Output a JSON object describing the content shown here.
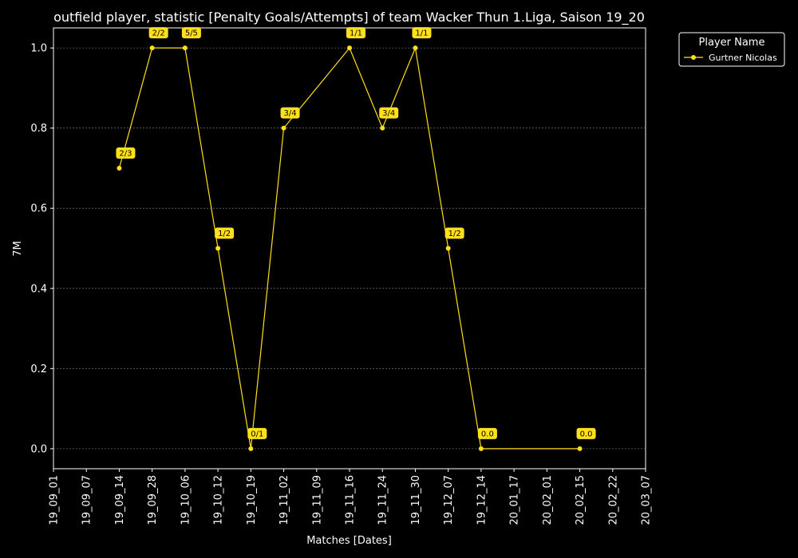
{
  "chart_data": {
    "type": "line",
    "title": "outfield player, statistic [Penalty Goals/Attempts] of team Wacker Thun 1.Liga, Saison 19_20",
    "xlabel": "Matches [Dates]",
    "ylabel": "7M",
    "ylim": [
      -0.05,
      1.05
    ],
    "yticks": [
      "0.0",
      "0.2",
      "0.4",
      "0.6",
      "0.8",
      "1.0"
    ],
    "x_ticks": [
      "19_09_01",
      "19_09_07",
      "19_09_14",
      "19_09_28",
      "19_10_06",
      "19_10_12",
      "19_10_19",
      "19_11_02",
      "19_11_09",
      "19_11_16",
      "19_11_24",
      "19_11_30",
      "19_12_07",
      "19_12_14",
      "20_01_17",
      "20_02_01",
      "20_02_15",
      "20_02_22",
      "20_03_07"
    ],
    "grid": "horizontal dashed",
    "legend": {
      "title": "Player Name",
      "position": "outside right, top"
    },
    "series": [
      {
        "name": "Gurtner Nicolas",
        "color": "#ffe01a",
        "points": [
          {
            "x": "19_09_14",
            "y": 0.7,
            "label": "2/3"
          },
          {
            "x": "19_09_28",
            "y": 1.0,
            "label": "2/2"
          },
          {
            "x": "19_10_06",
            "y": 1.0,
            "label": "5/5"
          },
          {
            "x": "19_10_12",
            "y": 0.5,
            "label": "1/2"
          },
          {
            "x": "19_10_19",
            "y": 0.0,
            "label": "0/1"
          },
          {
            "x": "19_11_02",
            "y": 0.8,
            "label": "3/4"
          },
          {
            "x": "19_11_16",
            "y": 1.0,
            "label": "1/1"
          },
          {
            "x": "19_11_24",
            "y": 0.8,
            "label": "3/4"
          },
          {
            "x": "19_11_30",
            "y": 1.0,
            "label": "1/1"
          },
          {
            "x": "19_12_07",
            "y": 0.5,
            "label": "1/2"
          },
          {
            "x": "19_12_14",
            "y": 0.0,
            "label": "0.0"
          },
          {
            "x": "20_02_15",
            "y": 0.0,
            "label": "0.0"
          }
        ]
      }
    ]
  }
}
